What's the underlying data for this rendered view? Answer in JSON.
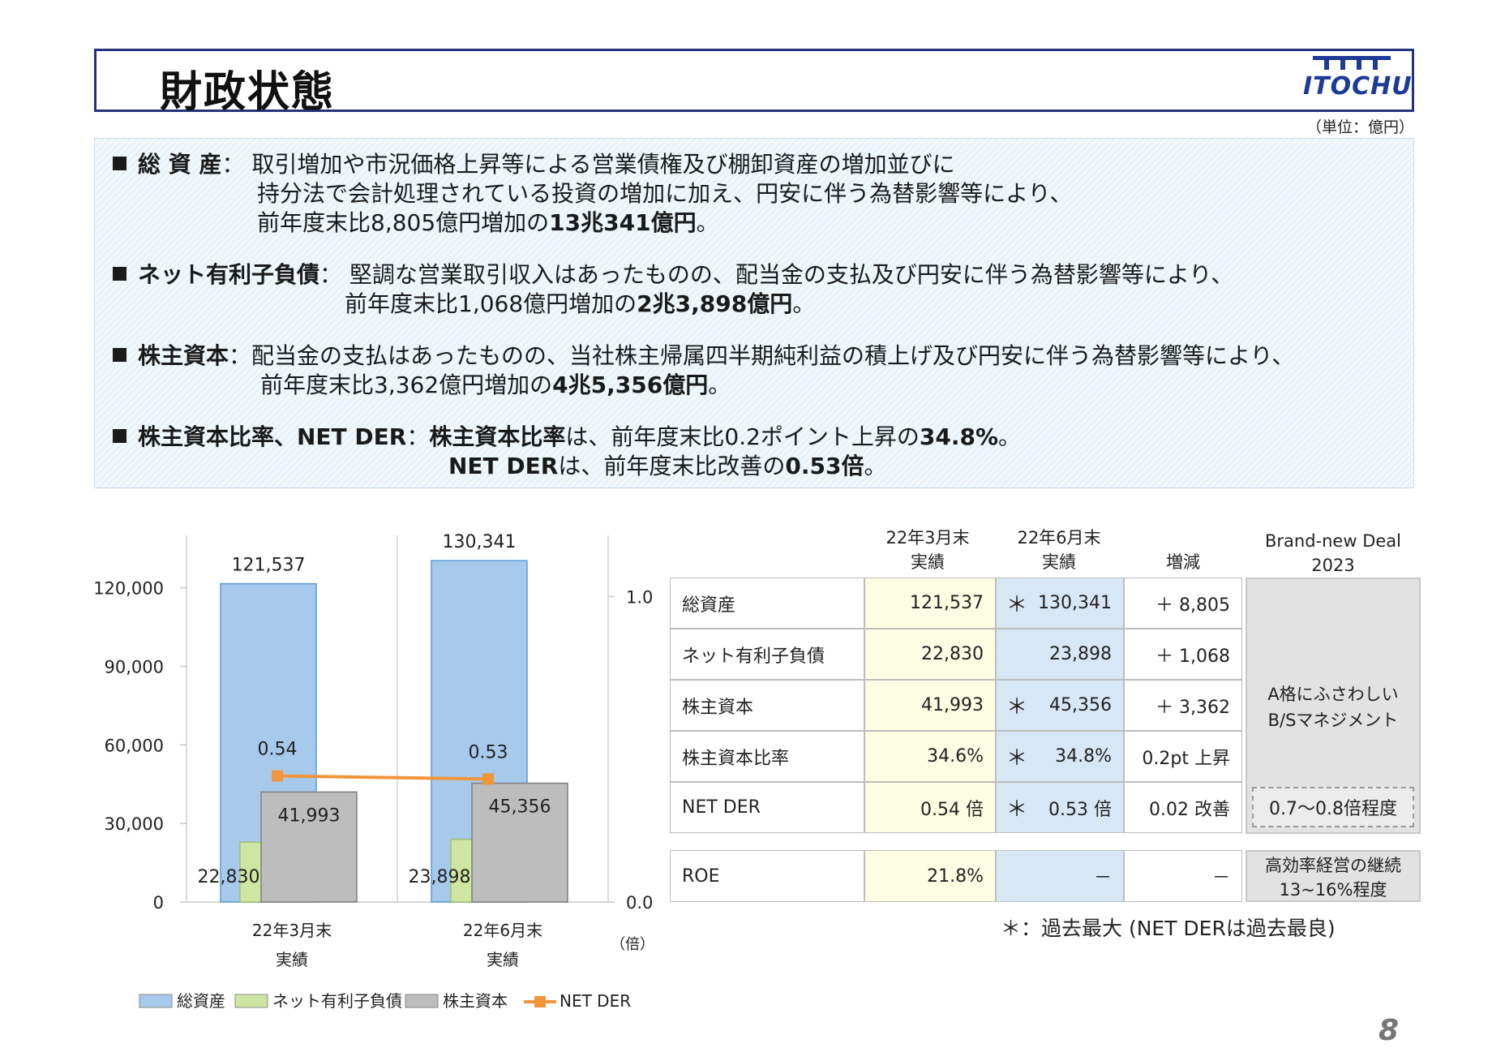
{
  "header": {
    "title": "財政状態",
    "logo_text": "ITOCHU"
  },
  "unit_label": "（単位：億円）",
  "summary": {
    "total_assets": {
      "label": "総 資 産",
      "line1": "取引増加や市況価格上昇等による営業債権及び棚卸資産の増加並びに",
      "line2": "持分法で会計処理されている投資の増加に加え、円安に伴う為替影響等により、",
      "line3_prefix": "前年度末比8,805億円増加の",
      "line3_bold": "13兆341億円",
      "line3_suffix": "。"
    },
    "net_debt": {
      "label": "ネット有利子負債",
      "line1": "堅調な営業取引収入はあったものの、配当金の支払及び円安に伴う為替影響等により、",
      "line2_prefix": "前年度末比1,068億円増加の",
      "line2_bold": "2兆3,898億円",
      "line2_suffix": "。"
    },
    "equity": {
      "label": "株主資本",
      "line1": "配当金の支払はあったものの、当社株主帰属四半期純利益の積上げ及び円安に伴う為替影響等により、",
      "line2_prefix": "前年度末比3,362億円増加の",
      "line2_bold": "4兆5,356億円",
      "line2_suffix": "。"
    },
    "ratio": {
      "label": "株主資本比率、NET DER",
      "line1_bold1": "株主資本比率",
      "line1_mid": "は、前年度末比0.2ポイント上昇の",
      "line1_bold2": "34.8%",
      "line1_suffix": "。",
      "line2_bold1": "NET DER",
      "line2_mid": "は、前年度末比改善の",
      "line2_bold2": "0.53倍",
      "line2_suffix": "。"
    }
  },
  "chart_data": {
    "type": "bar",
    "categories": [
      "22年3月末\n実績",
      "22年6月末\n実績"
    ],
    "series": [
      {
        "name": "総資産",
        "values": [
          121537,
          130341
        ],
        "color": "#a7c9ec",
        "value_labels": [
          "121,537",
          "130,341"
        ]
      },
      {
        "name": "ネット有利子負債",
        "values": [
          22830,
          23898
        ],
        "color": "#cfe6a3",
        "value_labels": [
          "22,830",
          "23,898"
        ]
      },
      {
        "name": "株主資本",
        "values": [
          41993,
          45356
        ],
        "color": "#bdbdbd",
        "value_labels": [
          "41,993",
          "45,356"
        ]
      },
      {
        "name": "NET DER",
        "type": "line",
        "axis": "right",
        "values": [
          0.54,
          0.53
        ],
        "color": "#f0953a",
        "value_labels": [
          "0.54",
          "0.53"
        ]
      }
    ],
    "y_left": {
      "lim": [
        0,
        140000
      ],
      "ticks": [
        0,
        30000,
        60000,
        90000,
        120000
      ],
      "tick_labels": [
        "0",
        "30,000",
        "60,000",
        "90,000",
        "120,000"
      ]
    },
    "y_right": {
      "lim": [
        0,
        1.2
      ],
      "ticks": [
        0.0,
        1.0
      ],
      "tick_labels": [
        "0.0",
        "1.0"
      ],
      "unit": "（倍）"
    },
    "legend_position": "bottom"
  },
  "table": {
    "headers": {
      "col1": [
        "22年3月末",
        "実績"
      ],
      "col2": [
        "22年6月末",
        "実績"
      ],
      "col3": "増減",
      "col4": [
        "Brand-new Deal",
        "2023"
      ]
    },
    "rows": [
      {
        "label": "総資産",
        "mar": "121,537",
        "jun": "130,341",
        "star": "＊",
        "change": "＋ 8,805"
      },
      {
        "label": "ネット有利子負債",
        "mar": "22,830",
        "jun": "23,898",
        "star": "",
        "change": "＋ 1,068"
      },
      {
        "label": "株主資本",
        "mar": "41,993",
        "jun": "45,356",
        "star": "＊",
        "change": "＋ 3,362"
      },
      {
        "label": "株主資本比率",
        "mar": "34.6%",
        "jun": "34.8%",
        "star": "＊",
        "change": "0.2pt 上昇"
      },
      {
        "label": "NET DER",
        "mar": "0.54 倍",
        "jun": "0.53 倍",
        "star": "＊",
        "change": "0.02 改善"
      }
    ],
    "roe": {
      "label": "ROE",
      "mar": "21.8%",
      "jun": "－",
      "change": "－"
    },
    "target_bs": [
      "A格にふさわしい",
      "B/Sマネジメント"
    ],
    "target_der": "0.7～0.8倍程度",
    "target_roe": [
      "高効率経営の継続",
      "13~16%程度"
    ],
    "note": "＊：過去最大 (NET DERは過去最良)"
  },
  "page_number": "8"
}
